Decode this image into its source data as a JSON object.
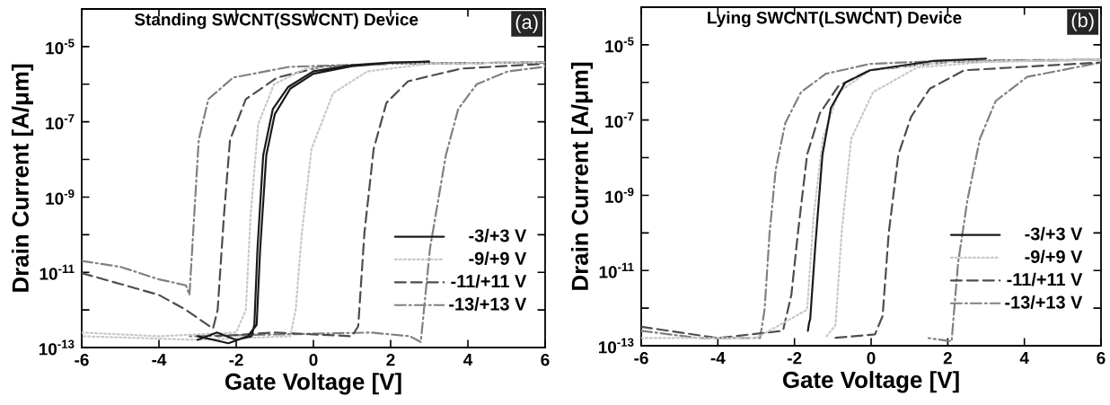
{
  "chart_data": [
    {
      "type": "line",
      "title": "Standing SWCNT(SSWCNT) Device",
      "xlabel": "Gate Voltage [V]",
      "ylabel": "Drain Current [A/μm]",
      "annotations": [
        "(a)"
      ],
      "log": "y",
      "legend": "bottom right",
      "xlim": [
        -6,
        6
      ],
      "xticks": [
        -6,
        -4,
        -2,
        0,
        2,
        4,
        6
      ],
      "ylim": [
        1e-13,
        0.0001
      ],
      "yticks": [
        {
          "value": 1e-13,
          "label": "10$^{-13}$"
        },
        {
          "value": 1e-12,
          "label": null
        },
        {
          "value": 1e-11,
          "label": "10$^{-11}$"
        },
        {
          "value": 1e-10,
          "label": null
        },
        {
          "value": 1e-09,
          "label": "10$^{-9}$"
        },
        {
          "value": 1e-08,
          "label": null
        },
        {
          "value": 1e-07,
          "label": "10$^{-7}$"
        },
        {
          "value": 1e-06,
          "label": null
        },
        {
          "value": 1e-05,
          "label": "10$^{-5}$"
        }
      ],
      "series": [
        {
          "name": "-3/+3 V",
          "color": "#1a1a1a",
          "line_style": "solid",
          "x": [
            -3,
            -2.5,
            -2,
            -1.6,
            -1.53,
            -1.45,
            -1.3,
            -1.05,
            -0.65,
            0,
            1,
            2,
            3,
            3,
            2,
            1,
            0,
            -0.6,
            -1.0,
            -1.22,
            -1.38,
            -1.47,
            -1.7,
            -2.2,
            -3
          ],
          "values": [
            1.6e-13,
            2.5e-13,
            1.6e-13,
            2e-13,
            4e-13,
            4e-11,
            1.3e-08,
            2.2e-07,
            8.5e-07,
            2.2e-06,
            3.2e-06,
            3.8e-06,
            4e-06,
            4e-06,
            3.7e-06,
            3e-06,
            1.9e-06,
            7.6e-07,
            1.6e-07,
            1.3e-08,
            4e-11,
            4e-13,
            2e-13,
            1.3e-13,
            2e-13
          ]
        },
        {
          "name": "-9/+9 V",
          "color": "#c8c8c8",
          "line_style": "dotted",
          "x": [
            -6,
            -4,
            -2,
            -1.75,
            -1.63,
            -1.43,
            -1.02,
            -0.2,
            2,
            6,
            6,
            3,
            1.4,
            0.51,
            -0.05,
            -0.3,
            -0.46,
            -0.6,
            -3,
            -6
          ],
          "values": [
            2.5e-13,
            2e-13,
            2.5e-13,
            1e-12,
            2.9e-10,
            8.7e-08,
            1e-06,
            2.6e-06,
            3.5e-06,
            3.8e-06,
            3.8e-06,
            3.5e-06,
            2.2e-06,
            5.8e-07,
            1.9e-08,
            1.1e-10,
            1e-12,
            2e-13,
            1.6e-13,
            2e-13
          ]
        },
        {
          "name": "-11/+11 V",
          "color": "#4d4d4d",
          "line_style": "dashed",
          "x": [
            -6,
            -5,
            -4,
            -3.3,
            -2.6,
            -2.48,
            -2.32,
            -2.16,
            -1.75,
            -0.94,
            0.19,
            2,
            6,
            6,
            3.83,
            2.45,
            1.89,
            1.56,
            1.32,
            1.16,
            1.0,
            -1,
            -2.5
          ],
          "values": [
            9.5e-12,
            4.9e-12,
            2.5e-12,
            1e-12,
            3.2e-13,
            1e-12,
            2.9e-10,
            3.3e-08,
            4e-07,
            1.5e-06,
            2.9e-06,
            3.5e-06,
            3.8e-06,
            3.5e-06,
            2.6e-06,
            1.2e-06,
            3.2e-07,
            1.9e-08,
            1.1e-10,
            3.7e-13,
            2e-13,
            2.5e-13,
            2e-13
          ]
        },
        {
          "name": "-13/+13 V",
          "color": "#808080",
          "line_style": "dashdot",
          "x": [
            -6,
            -5,
            -4,
            -3.3,
            -3.21,
            -3.09,
            -2.97,
            -2.72,
            -2.08,
            -0.62,
            2,
            6,
            6,
            5.04,
            4.23,
            3.75,
            3.43,
            3.02,
            2.78,
            2.5,
            1.5,
            -3.2
          ],
          "values": [
            2e-11,
            1.4e-11,
            6.5e-12,
            4.5e-12,
            2.5e-12,
            2.9e-10,
            3.3e-08,
            4e-07,
            1.5e-06,
            2.9e-06,
            3.5e-06,
            3.8e-06,
            2.9e-06,
            2.2e-06,
            1e-06,
            2.2e-07,
            1.3e-08,
            4.4e-11,
            1.4e-13,
            2e-13,
            2.5e-13,
            2e-13
          ]
        }
      ]
    },
    {
      "type": "line",
      "title": "Lying SWCNT(LSWCNT) Device",
      "xlabel": "Gate Voltage [V]",
      "ylabel": "Drain Current [A/μm]",
      "annotations": [
        "(b)"
      ],
      "log": "y",
      "legend": "bottom right",
      "xlim": [
        -6,
        6
      ],
      "xticks": [
        -6,
        -4,
        -2,
        0,
        2,
        4,
        6
      ],
      "ylim": [
        1e-13,
        0.0001
      ],
      "yticks": [
        {
          "value": 1e-13,
          "label": "10$^{-13}$"
        },
        {
          "value": 1e-12,
          "label": null
        },
        {
          "value": 1e-11,
          "label": "10$^{-11}$"
        },
        {
          "value": 1e-10,
          "label": null
        },
        {
          "value": 1e-09,
          "label": "10$^{-9}$"
        },
        {
          "value": 1e-08,
          "label": null
        },
        {
          "value": 1e-07,
          "label": "10$^{-7}$"
        },
        {
          "value": 1e-06,
          "label": null
        },
        {
          "value": 1e-05,
          "label": "10$^{-5}$"
        }
      ],
      "series": [
        {
          "name": "-3/+3 V",
          "color": "#1a1a1a",
          "line_style": "solid",
          "x": [
            -1.65,
            -1.62,
            -1.59,
            -1.46,
            -1.27,
            -1.05,
            -0.68,
            -0.03,
            1.61,
            3
          ],
          "values": [
            2.5e-13,
            4e-13,
            5.1e-13,
            4.1e-11,
            1.2e-08,
            2.1e-07,
            9.8e-07,
            2.1e-06,
            3.7e-06,
            4.3e-06
          ]
        },
        {
          "name": "-9/+9 V",
          "color": "#c8c8c8",
          "line_style": "dotted",
          "x": [
            -6,
            -3,
            -1.67,
            -1.5,
            -1.26,
            -0.85,
            -0.03,
            2,
            6,
            6,
            3,
            1.2,
            0.05,
            -0.52,
            -0.77,
            -0.93,
            -1.2
          ],
          "values": [
            1.6e-13,
            1.6e-13,
            9.1e-13,
            2.8e-10,
            3.2e-08,
            5.5e-07,
            2.1e-06,
            3.5e-06,
            4e-06,
            4e-06,
            3.5e-06,
            2.5e-06,
            5.5e-07,
            3.2e-08,
            1e-10,
            3.5e-13,
            1.6e-13
          ]
        },
        {
          "name": "-11/+11 V",
          "color": "#4d4d4d",
          "line_style": "dashed",
          "x": [
            -6,
            -4,
            -2.3,
            -2.08,
            -1.91,
            -1.67,
            -1.34,
            -0.85,
            -0.03,
            2,
            6,
            6,
            2.43,
            1.53,
            1.04,
            0.71,
            0.46,
            0.3,
            0.1,
            -1
          ],
          "values": [
            3.2e-13,
            1.6e-13,
            2.5e-13,
            2.3e-12,
            1e-10,
            1.2e-08,
            1.5e-07,
            8.1e-07,
            2.1e-06,
            3.5e-06,
            4e-06,
            3.4e-06,
            2.1e-06,
            6.8e-07,
            1.2e-07,
            1.2e-08,
            1e-10,
            6.2e-13,
            2e-13,
            1.6e-13
          ]
        },
        {
          "name": "-13/+13 V",
          "color": "#808080",
          "line_style": "dashdot",
          "x": [
            -6,
            -4.5,
            -2.9,
            -2.78,
            -2.65,
            -2.49,
            -2.24,
            -1.83,
            -1.18,
            -0.03,
            2,
            6,
            6,
            4.07,
            3.25,
            2.84,
            2.51,
            2.27,
            2.1,
            1.5
          ],
          "values": [
            2.5e-13,
            1.6e-13,
            1.6e-13,
            9.1e-13,
            1e-10,
            4.8e-09,
            8.3e-08,
            5.5e-07,
            1.7e-06,
            3.1e-06,
            3.8e-06,
            4e-06,
            3.4e-06,
            1.4e-06,
            3.2e-07,
            3.2e-08,
            7.1e-10,
            1.6e-11,
            1.3e-13,
            1.6e-13
          ]
        }
      ]
    }
  ]
}
